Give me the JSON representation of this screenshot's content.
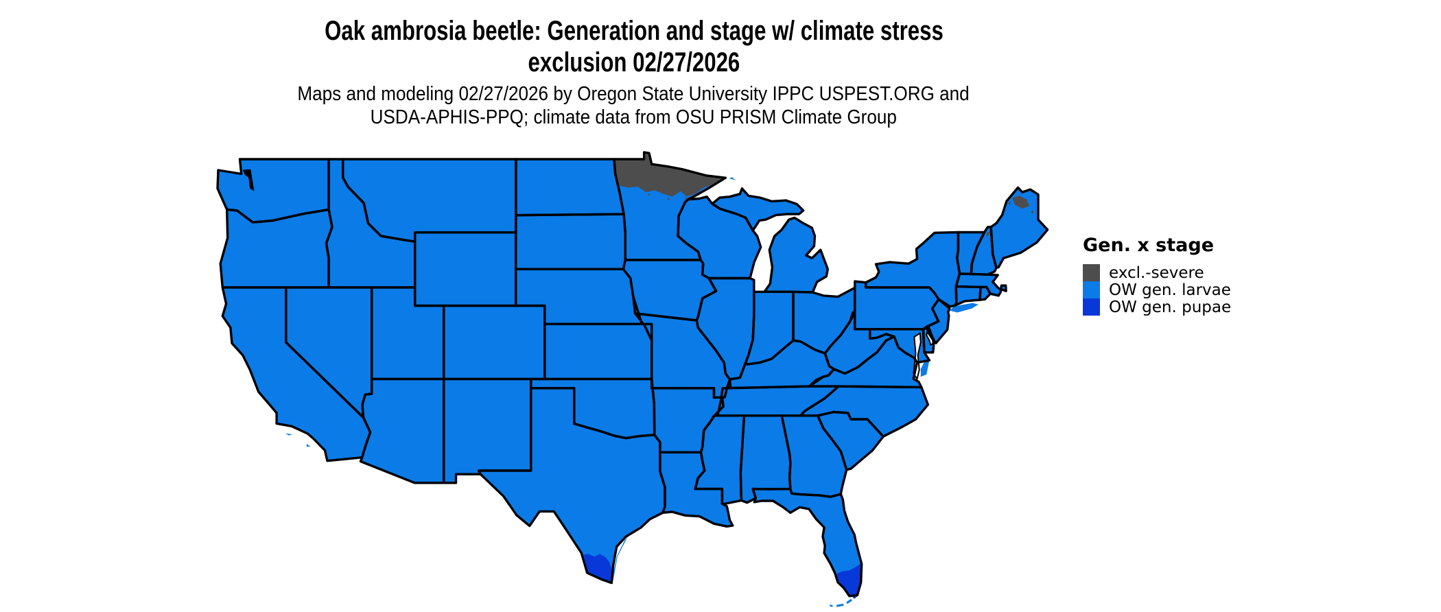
{
  "title": {
    "line1": "Oak ambrosia beetle: Generation and stage w/ climate stress",
    "line2": "exclusion 02/27/2026"
  },
  "subtitle": {
    "line1": "Maps and modeling 02/27/2026 by Oregon State University IPPC USPEST.ORG and",
    "line2": "USDA-APHIS-PPQ; climate data from OSU PRISM Climate Group"
  },
  "legend": {
    "title": "Gen. x stage",
    "items": [
      {
        "key": "excl",
        "label": "excl.-severe",
        "color": "#4D4D4D"
      },
      {
        "key": "larvae",
        "label": "OW gen. larvae",
        "color": "#0B7BE8"
      },
      {
        "key": "pupae",
        "label": "OW gen. pupae",
        "color": "#0838D8"
      }
    ]
  },
  "map": {
    "background": "#FFFFFF",
    "border_color": "#000000",
    "state_fill_category": "larvae",
    "regions": [
      {
        "name": "northern-minnesota-exclusion",
        "category": "excl"
      },
      {
        "name": "northern-maine-exclusion",
        "category": "excl"
      },
      {
        "name": "white-mountains-exclusion",
        "category": "excl"
      },
      {
        "name": "south-texas-pupae",
        "category": "pupae"
      },
      {
        "name": "south-florida-pupae",
        "category": "pupae"
      },
      {
        "name": "florida-keys-pupae",
        "category": "pupae"
      }
    ]
  }
}
